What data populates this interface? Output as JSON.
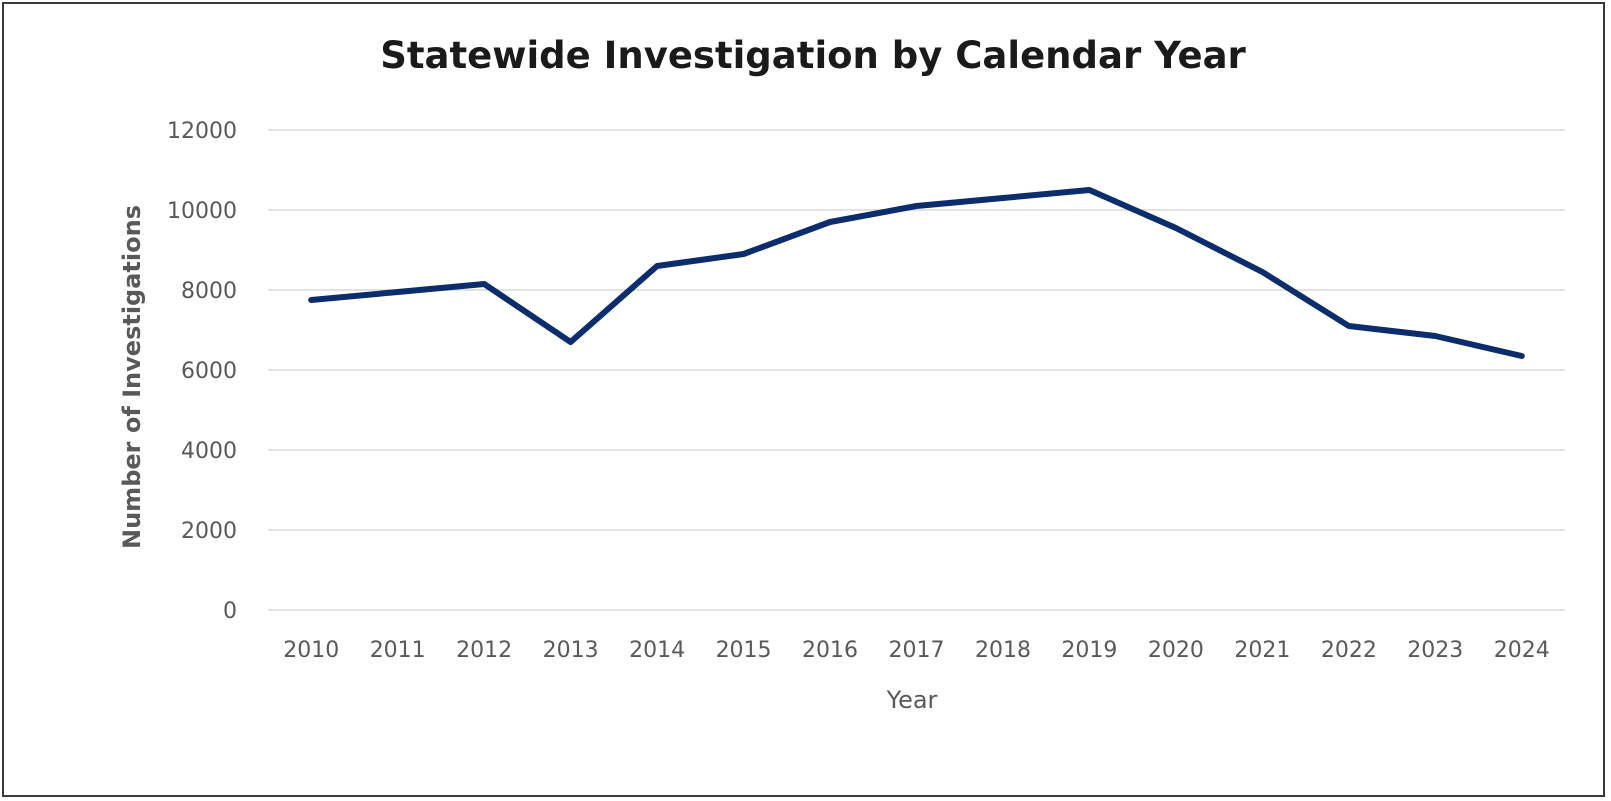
{
  "chart_data": {
    "type": "line",
    "title": "Statewide Investigation by Calendar Year",
    "xlabel": "Year",
    "ylabel": "Number of Investigations",
    "categories": [
      "2010",
      "2011",
      "2012",
      "2013",
      "2014",
      "2015",
      "2016",
      "2017",
      "2018",
      "2019",
      "2020",
      "2021",
      "2022",
      "2023",
      "2024"
    ],
    "series": [
      {
        "values": [
          7750,
          7950,
          8150,
          6700,
          8600,
          8900,
          9700,
          10100,
          10300,
          10500,
          9550,
          8450,
          7100,
          6850,
          6350
        ],
        "color": "#0b2d6b"
      }
    ],
    "ylim": [
      0,
      12000
    ],
    "yticks": [
      0,
      2000,
      4000,
      6000,
      8000,
      10000,
      12000
    ],
    "grid": true,
    "legend": "none",
    "colors": {
      "gridline": "#d9d9d9",
      "tick_text": "#595959",
      "title_text": "#1a1a1a",
      "frame": "#3a3a3a"
    }
  }
}
